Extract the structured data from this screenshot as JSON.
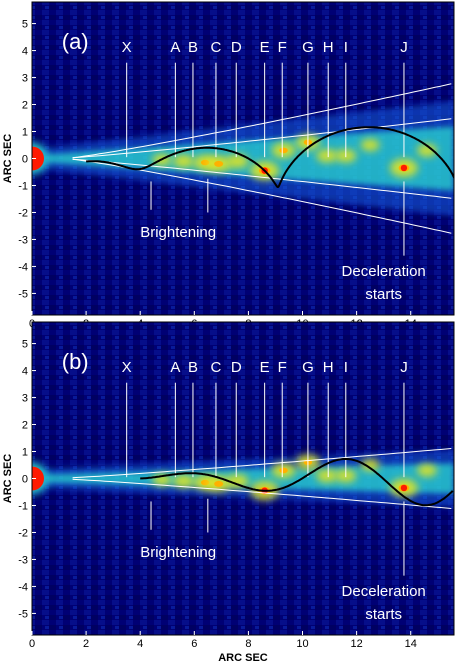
{
  "chart_data": [
    {
      "type": "heatmap",
      "panel_label": "(a)",
      "xlabel": "ARC SEC",
      "ylabel": "ARC SEC",
      "xlim": [
        0,
        15.6
      ],
      "ylim": [
        -5.8,
        5.8
      ],
      "x_ticks": [
        0,
        2,
        4,
        6,
        8,
        10,
        12,
        14
      ],
      "y_ticks": [
        5,
        4,
        3,
        2,
        1,
        0,
        -1,
        -2,
        -3,
        -4,
        -5
      ],
      "colors": {
        "background": "#000066",
        "core": "#ff1a00",
        "knot": "#ffb000",
        "jet": "#2ad9d0",
        "curve": "#000000",
        "guides": "#ffffff"
      },
      "knots": [
        {
          "label": "X",
          "x": 3.5
        },
        {
          "label": "A",
          "x": 5.3
        },
        {
          "label": "B",
          "x": 5.95
        },
        {
          "label": "C",
          "x": 6.8
        },
        {
          "label": "D",
          "x": 7.55
        },
        {
          "label": "E",
          "x": 8.6
        },
        {
          "label": "F",
          "x": 9.25
        },
        {
          "label": "G",
          "x": 10.2
        },
        {
          "label": "H",
          "x": 10.95
        },
        {
          "label": "I",
          "x": 11.6
        },
        {
          "label": "J",
          "x": 13.75
        }
      ],
      "annotations": [
        {
          "text": "Brightening",
          "x": 4.4
        },
        {
          "text": "Deceleration",
          "line2": "starts",
          "x": 13.75
        }
      ],
      "blobs": [
        {
          "x": 0,
          "y": 0,
          "v": 1.0
        },
        {
          "x": 4.8,
          "y": -0.05,
          "v": 0.45
        },
        {
          "x": 5.6,
          "y": -0.1,
          "v": 0.55
        },
        {
          "x": 6.4,
          "y": -0.15,
          "v": 0.7
        },
        {
          "x": 6.9,
          "y": -0.2,
          "v": 0.75
        },
        {
          "x": 7.6,
          "y": -0.1,
          "v": 0.6
        },
        {
          "x": 8.6,
          "y": -0.45,
          "v": 0.95
        },
        {
          "x": 9.3,
          "y": 0.3,
          "v": 0.7
        },
        {
          "x": 10.2,
          "y": 0.6,
          "v": 0.7
        },
        {
          "x": 10.9,
          "y": 0.1,
          "v": 0.55
        },
        {
          "x": 11.6,
          "y": 0.1,
          "v": 0.55
        },
        {
          "x": 12.5,
          "y": 0.5,
          "v": 0.45
        },
        {
          "x": 13.75,
          "y": -0.35,
          "v": 0.9
        },
        {
          "x": 14.6,
          "y": 0.3,
          "v": 0.5
        }
      ],
      "curve": {
        "kind": "helix-loops",
        "x_start": 2.0,
        "x_end": 15.6
      },
      "envelope": {
        "spread_outer": 0.19,
        "spread_inner": 0.1
      }
    },
    {
      "type": "heatmap",
      "panel_label": "(b)",
      "xlabel": "ARC SEC",
      "ylabel": "ARC SEC",
      "xlim": [
        0,
        15.6
      ],
      "ylim": [
        -5.8,
        5.8
      ],
      "x_ticks": [
        0,
        2,
        4,
        6,
        8,
        10,
        12,
        14
      ],
      "y_ticks": [
        5,
        4,
        3,
        2,
        1,
        0,
        -1,
        -2,
        -3,
        -4,
        -5
      ],
      "colors": {
        "background": "#000066",
        "core": "#ff1a00",
        "knot": "#ffb000",
        "jet": "#2ad9d0",
        "curve": "#000000",
        "guides": "#ffffff"
      },
      "knots": [
        {
          "label": "X",
          "x": 3.5
        },
        {
          "label": "A",
          "x": 5.3
        },
        {
          "label": "B",
          "x": 5.95
        },
        {
          "label": "C",
          "x": 6.8
        },
        {
          "label": "D",
          "x": 7.55
        },
        {
          "label": "E",
          "x": 8.6
        },
        {
          "label": "F",
          "x": 9.25
        },
        {
          "label": "G",
          "x": 10.2
        },
        {
          "label": "H",
          "x": 10.95
        },
        {
          "label": "I",
          "x": 11.6
        },
        {
          "label": "J",
          "x": 13.75
        }
      ],
      "annotations": [
        {
          "text": "Brightening",
          "x": 4.4
        },
        {
          "text": "Deceleration",
          "line2": "starts",
          "x": 13.75
        }
      ],
      "blobs": [
        {
          "x": 0,
          "y": 0,
          "v": 1.0
        },
        {
          "x": 4.8,
          "y": -0.05,
          "v": 0.45
        },
        {
          "x": 5.6,
          "y": -0.1,
          "v": 0.55
        },
        {
          "x": 6.4,
          "y": -0.15,
          "v": 0.7
        },
        {
          "x": 6.9,
          "y": -0.2,
          "v": 0.75
        },
        {
          "x": 7.6,
          "y": -0.1,
          "v": 0.6
        },
        {
          "x": 8.6,
          "y": -0.45,
          "v": 0.95
        },
        {
          "x": 9.3,
          "y": 0.3,
          "v": 0.7
        },
        {
          "x": 10.2,
          "y": 0.6,
          "v": 0.7
        },
        {
          "x": 10.9,
          "y": 0.1,
          "v": 0.55
        },
        {
          "x": 11.6,
          "y": 0.1,
          "v": 0.55
        },
        {
          "x": 12.5,
          "y": 0.5,
          "v": 0.45
        },
        {
          "x": 13.75,
          "y": -0.35,
          "v": 0.9
        },
        {
          "x": 14.6,
          "y": 0.3,
          "v": 0.5
        }
      ],
      "curve": {
        "kind": "sinusoid",
        "x_start": 4.0,
        "x_end": 15.6
      },
      "envelope": {
        "spread_outer": 0.075
      }
    }
  ]
}
